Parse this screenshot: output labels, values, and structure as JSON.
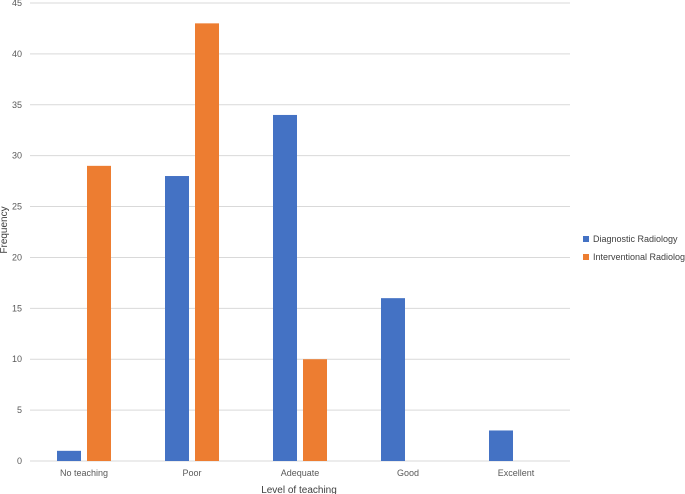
{
  "chart_data": {
    "type": "bar",
    "categories": [
      "No teaching",
      "Poor",
      "Adequate",
      "Good",
      "Excellent"
    ],
    "series": [
      {
        "name": "Diagnostic Radiology",
        "values": [
          1,
          28,
          34,
          16,
          3
        ],
        "color": "#4472C4"
      },
      {
        "name": "Interventional Radiology",
        "values": [
          29,
          43,
          10,
          0,
          0
        ],
        "color": "#ED7D31"
      }
    ],
    "title": "",
    "xlabel": "Level of teaching",
    "ylabel": "Frequency",
    "ylim": [
      0,
      45
    ],
    "yticks": [
      "0",
      "5",
      "10",
      "15",
      "20",
      "25",
      "30",
      "35",
      "40",
      "45"
    ],
    "grid": true,
    "legend_position": "right",
    "gridline_color": "#D9D9D9"
  }
}
